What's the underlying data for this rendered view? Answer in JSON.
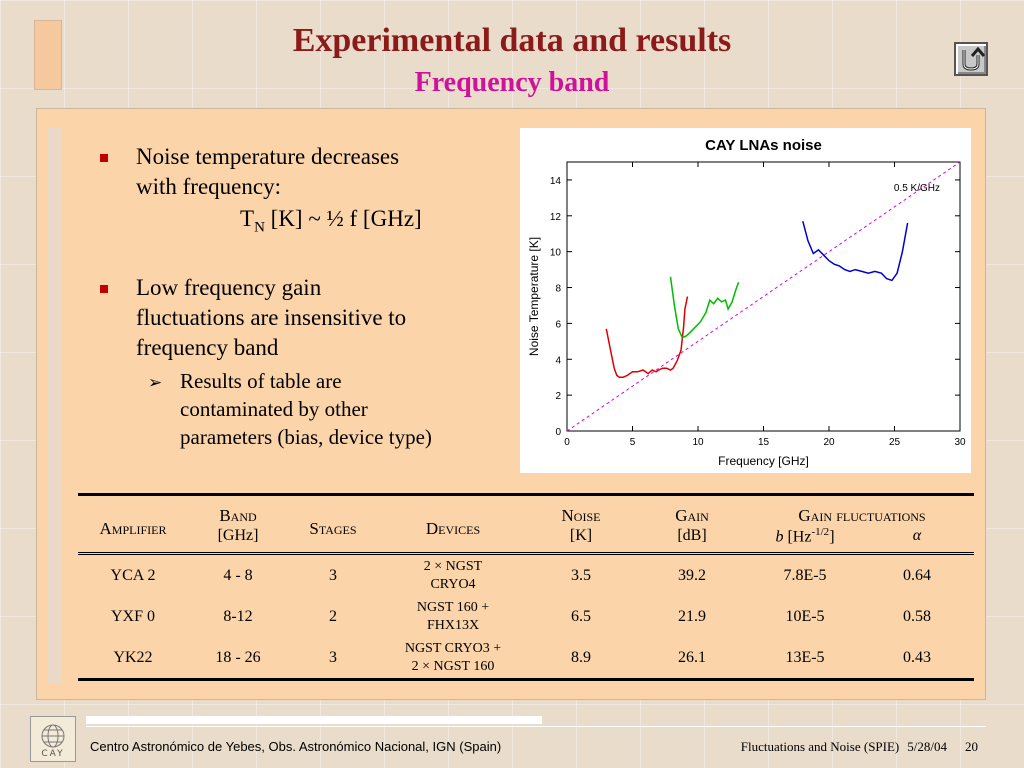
{
  "slide": {
    "title": "Experimental data and results",
    "subtitle": "Frequency band"
  },
  "bullets": {
    "item1_line1": "Noise temperature decreases",
    "item1_line2": "with frequency:",
    "formula_T": "T",
    "formula_sub": "N",
    "formula_rest": " [K] ~ ½ f [GHz]",
    "item2_line1": "Low frequency gain",
    "item2_line2": "fluctuations are insensitive to",
    "item2_line3": "frequency band",
    "sub_line1": "Results of table are",
    "sub_line2": "contaminated by other",
    "sub_line3": "parameters (bias, device type)"
  },
  "chart_data": {
    "type": "line",
    "title": "CAY LNAs noise",
    "xlabel": "Frequency [GHz]",
    "ylabel": "Noise Temperature [K]",
    "xlim": [
      0,
      30
    ],
    "ylim": [
      0,
      15
    ],
    "xticks": [
      0,
      5,
      10,
      15,
      20,
      25,
      30
    ],
    "yticks": [
      0,
      2,
      4,
      6,
      8,
      10,
      12,
      14
    ],
    "annotation": "0.5 K/GHz",
    "reference_line": {
      "slope": 0.5,
      "color": "#e000e0"
    },
    "series": [
      {
        "color": "#dd0000",
        "x": [
          3.0,
          3.3,
          3.6,
          3.8,
          4.0,
          4.3,
          4.6,
          5.0,
          5.4,
          5.8,
          6.0,
          6.2,
          6.5,
          6.8,
          7.0,
          7.3,
          7.6,
          7.9,
          8.1,
          8.4,
          8.7,
          8.9,
          9.0,
          9.2
        ],
        "y": [
          5.7,
          4.6,
          3.5,
          3.1,
          3.0,
          3.0,
          3.1,
          3.3,
          3.3,
          3.4,
          3.3,
          3.2,
          3.4,
          3.3,
          3.4,
          3.5,
          3.5,
          3.4,
          3.5,
          3.9,
          4.5,
          5.8,
          6.8,
          7.5
        ]
      },
      {
        "color": "#00bb00",
        "x": [
          7.9,
          8.2,
          8.5,
          8.8,
          9.1,
          9.4,
          9.8,
          10.2,
          10.6,
          10.9,
          11.2,
          11.5,
          11.8,
          12.1,
          12.3,
          12.6,
          12.9,
          13.1
        ],
        "y": [
          8.6,
          7.0,
          5.7,
          5.2,
          5.3,
          5.5,
          5.8,
          6.1,
          6.6,
          7.3,
          7.1,
          7.4,
          7.2,
          7.3,
          6.8,
          7.2,
          7.9,
          8.3
        ]
      },
      {
        "color": "#0000cc",
        "x": [
          18.0,
          18.4,
          18.8,
          19.2,
          19.6,
          20.0,
          20.4,
          20.8,
          21.2,
          21.6,
          22.0,
          22.5,
          23.0,
          23.5,
          24.0,
          24.4,
          24.8,
          25.2,
          25.6,
          26.0
        ],
        "y": [
          11.7,
          10.6,
          9.9,
          10.1,
          9.8,
          9.5,
          9.3,
          9.2,
          9.0,
          8.9,
          9.0,
          8.9,
          8.8,
          8.9,
          8.8,
          8.5,
          8.4,
          8.8,
          10.0,
          11.6
        ]
      }
    ]
  },
  "table": {
    "headers": {
      "amplifier": "Amplifier",
      "band": "Band",
      "band_unit": "[GHz]",
      "stages": "Stages",
      "devices": "Devices",
      "noise": "Noise",
      "noise_unit": "[K]",
      "gain": "Gain",
      "gain_unit": "[dB]",
      "gain_fluct": "Gain fluctuations",
      "b_sym": "b",
      "b_unit": " [Hz",
      "b_exp": "-1/2",
      "b_close": "]",
      "alpha": "α"
    },
    "rows": [
      {
        "amplifier": "YCA 2",
        "band": "4 - 8",
        "stages": "3",
        "devices_l1": "2 × NGST",
        "devices_l2": "CRYO4",
        "noise": "3.5",
        "gain": "39.2",
        "b": "7.8E-5",
        "alpha": "0.64"
      },
      {
        "amplifier": "YXF 0",
        "band": "8-12",
        "stages": "2",
        "devices_l1": "NGST 160 +",
        "devices_l2": "FHX13X",
        "noise": "6.5",
        "gain": "21.9",
        "b": "10E-5",
        "alpha": "0.58"
      },
      {
        "amplifier": "YK22",
        "band": "18 - 26",
        "stages": "3",
        "devices_l1": "NGST CRYO3 +",
        "devices_l2": "2 × NGST 160",
        "noise": "8.9",
        "gain": "26.1",
        "b": "13E-5",
        "alpha": "0.43"
      }
    ]
  },
  "footer": {
    "logo_text": "CAY",
    "left": "Centro Astronómico de Yebes, Obs. Astronómico Nacional, IGN (Spain)",
    "event": "Fluctuations and Noise (SPIE)",
    "date": "5/28/04",
    "page": "20"
  },
  "colors": {
    "title": "#8b1a1a",
    "subtitle": "#d0129a",
    "panel": "#fbd4aa",
    "bullet": "#c00000"
  },
  "icons": {
    "home": "u-turn-arrow-icon"
  }
}
